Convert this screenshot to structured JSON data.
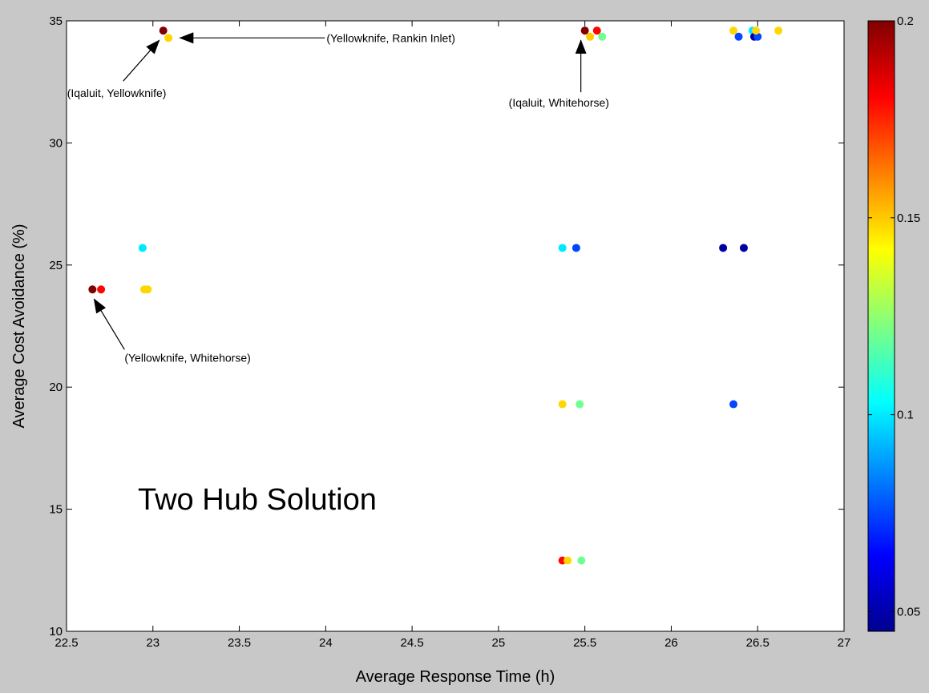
{
  "chart_data": {
    "type": "scatter",
    "xlabel": "Average Response Time (h)",
    "ylabel": "Average Cost Avoidance (%)",
    "xlim": [
      22.5,
      27
    ],
    "ylim": [
      10,
      35
    ],
    "x_ticks": [
      "22.5",
      "23",
      "23.5",
      "24",
      "24.5",
      "25",
      "25.5",
      "26",
      "26.5",
      "27"
    ],
    "y_ticks": [
      "10",
      "15",
      "20",
      "25",
      "30",
      "35"
    ],
    "grid": false,
    "colorbar": {
      "colormap": "jet",
      "range": [
        0.045,
        0.2
      ],
      "ticks": [
        "0.05",
        "0.1",
        "0.15",
        "0.2"
      ]
    },
    "annotation_text": "Two Hub Solution",
    "annotations": [
      {
        "text": "(Iqaluit, Yellowknife)",
        "point": [
          23.06,
          34.6
        ]
      },
      {
        "text": "(Yellowknife, Rankin Inlet)",
        "point": [
          23.1,
          34.3
        ]
      },
      {
        "text": "(Iqaluit, Whitehorse)",
        "point": [
          25.5,
          34.6
        ]
      },
      {
        "text": "(Yellowknife, Whitehorse)",
        "point": [
          22.65,
          24.0
        ]
      }
    ],
    "points": [
      {
        "x": 23.06,
        "y": 34.6,
        "c": 0.2
      },
      {
        "x": 23.09,
        "y": 34.3,
        "c": 0.148
      },
      {
        "x": 25.5,
        "y": 34.6,
        "c": 0.2
      },
      {
        "x": 25.53,
        "y": 34.35,
        "c": 0.15
      },
      {
        "x": 25.57,
        "y": 34.6,
        "c": 0.18
      },
      {
        "x": 25.6,
        "y": 34.35,
        "c": 0.12
      },
      {
        "x": 26.36,
        "y": 34.6,
        "c": 0.148
      },
      {
        "x": 26.39,
        "y": 34.35,
        "c": 0.075
      },
      {
        "x": 26.47,
        "y": 34.6,
        "c": 0.1
      },
      {
        "x": 26.48,
        "y": 34.35,
        "c": 0.05
      },
      {
        "x": 26.5,
        "y": 34.35,
        "c": 0.075
      },
      {
        "x": 26.49,
        "y": 34.6,
        "c": 0.148
      },
      {
        "x": 26.62,
        "y": 34.6,
        "c": 0.148
      },
      {
        "x": 22.94,
        "y": 25.7,
        "c": 0.1
      },
      {
        "x": 22.65,
        "y": 24.0,
        "c": 0.2
      },
      {
        "x": 22.7,
        "y": 24.0,
        "c": 0.18
      },
      {
        "x": 22.95,
        "y": 24.0,
        "c": 0.148
      },
      {
        "x": 22.97,
        "y": 24.0,
        "c": 0.148
      },
      {
        "x": 25.37,
        "y": 25.7,
        "c": 0.1
      },
      {
        "x": 25.45,
        "y": 25.7,
        "c": 0.075
      },
      {
        "x": 26.3,
        "y": 25.7,
        "c": 0.05
      },
      {
        "x": 26.42,
        "y": 25.7,
        "c": 0.05
      },
      {
        "x": 25.37,
        "y": 19.3,
        "c": 0.148
      },
      {
        "x": 25.47,
        "y": 19.3,
        "c": 0.12
      },
      {
        "x": 26.36,
        "y": 19.3,
        "c": 0.075
      },
      {
        "x": 25.37,
        "y": 12.9,
        "c": 0.18
      },
      {
        "x": 25.4,
        "y": 12.9,
        "c": 0.148
      },
      {
        "x": 25.48,
        "y": 12.9,
        "c": 0.12
      }
    ]
  }
}
